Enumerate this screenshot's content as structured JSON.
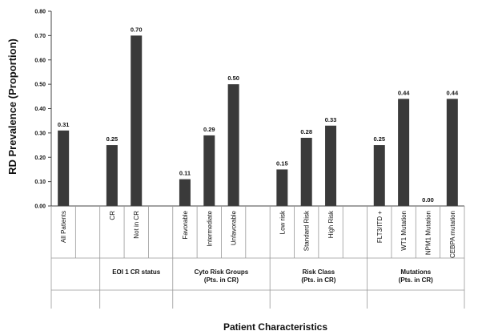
{
  "chart_data": {
    "type": "bar",
    "ylabel": "RD Prevalence (Proportion)",
    "xlabel": "Patient Characteristics",
    "ylim": [
      0,
      0.8
    ],
    "yticks": [
      "0.00",
      "0.10",
      "0.20",
      "0.30",
      "0.40",
      "0.50",
      "0.60",
      "0.70",
      "0.80"
    ],
    "bar_color": "#3a3a3a",
    "categories": [
      "All Patients",
      "",
      "CR",
      "Not in CR",
      "",
      "Favorable",
      "Intermediate",
      "Unfavorable",
      "",
      "Low risk",
      "Standard Risk",
      "High Risk",
      "",
      "FLT3/ITD +",
      "WT1 Mutation",
      "NPM1 Mutation",
      "CEBPA mutation"
    ],
    "values": [
      0.31,
      null,
      0.25,
      0.7,
      null,
      0.11,
      0.29,
      0.5,
      null,
      0.15,
      0.28,
      0.33,
      null,
      0.25,
      0.44,
      0.0,
      0.44
    ],
    "value_labels": [
      "0.31",
      "",
      "0.25",
      "0.70",
      "",
      "0.11",
      "0.29",
      "0.50",
      "",
      "0.15",
      "0.28",
      "0.33",
      "",
      "0.25",
      "0.44",
      "0.00",
      "0.44"
    ],
    "groups": [
      {
        "lines": [
          ""
        ],
        "start": 0,
        "end": 1
      },
      {
        "lines": [
          "EOI 1 CR status"
        ],
        "start": 2,
        "end": 4
      },
      {
        "lines": [
          "Cyto Risk Groups",
          "(Pts. in CR)"
        ],
        "start": 5,
        "end": 8
      },
      {
        "lines": [
          "Risk Class",
          "(Pts. in CR)"
        ],
        "start": 9,
        "end": 12
      },
      {
        "lines": [
          "Mutations",
          "(Pts. in CR)"
        ],
        "start": 13,
        "end": 16
      }
    ]
  }
}
